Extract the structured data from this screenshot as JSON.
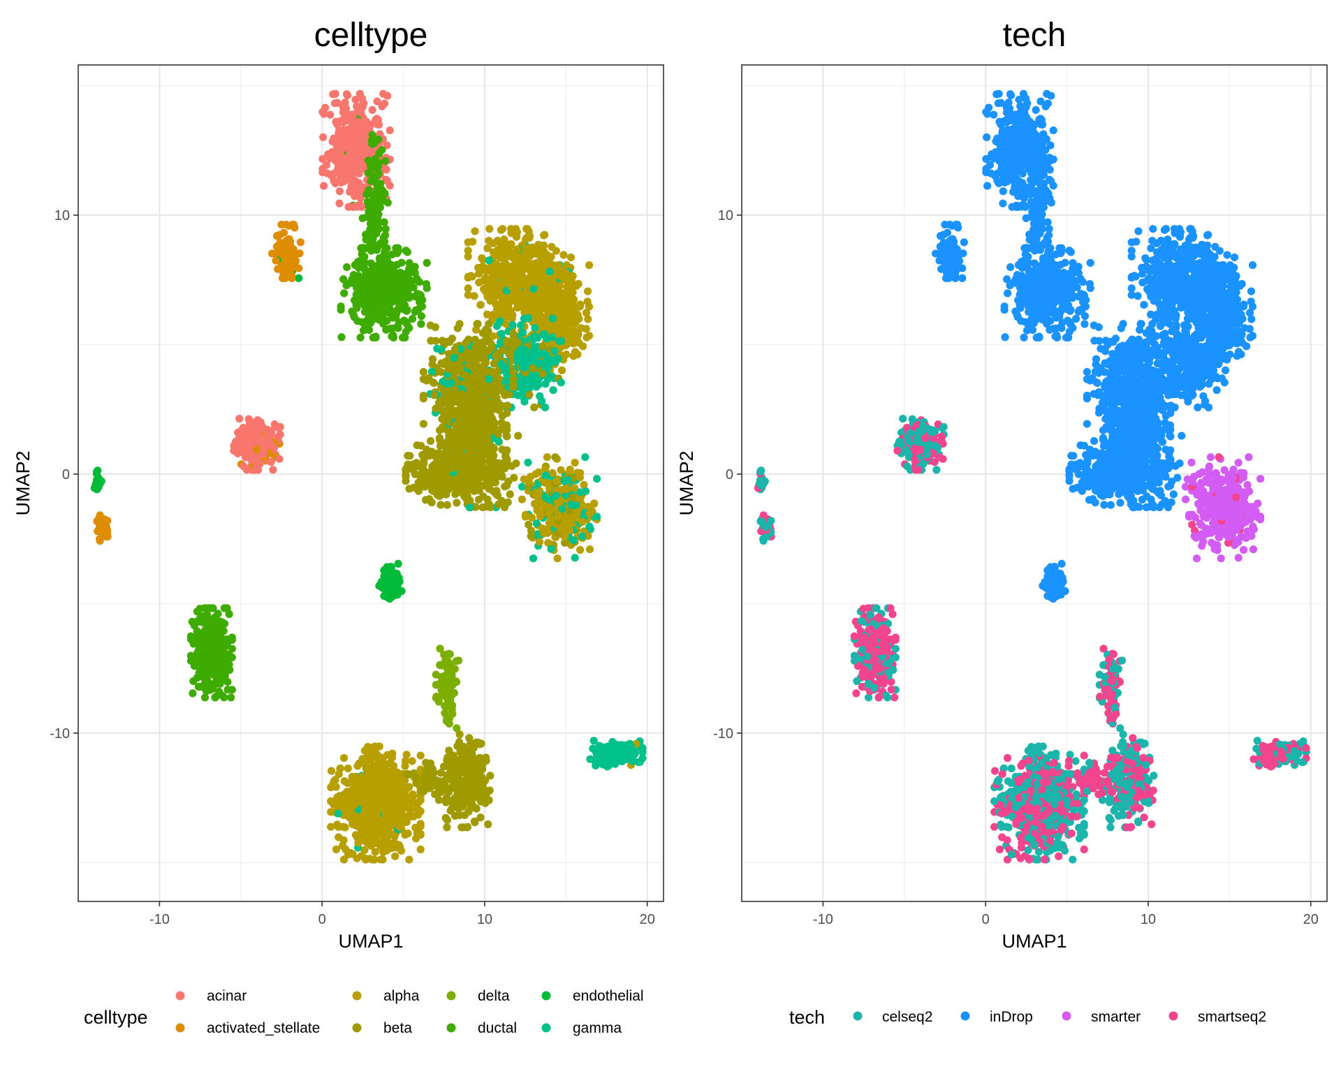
{
  "chart_data": [
    {
      "type": "scatter",
      "title": "celltype",
      "xlabel": "UMAP1",
      "ylabel": "UMAP2",
      "xlim": [
        -15,
        21
      ],
      "ylim": [
        -16.5,
        15.8
      ],
      "xticks": [
        -10,
        0,
        10,
        20
      ],
      "yticks": [
        -10,
        0,
        10
      ],
      "xtick_labels": [
        "-10",
        "0",
        "10",
        "20"
      ],
      "ytick_labels": [
        "-10",
        "0",
        "10"
      ],
      "grid": true,
      "legend_title": "celltype",
      "legend_position": "bottom",
      "legend": [
        {
          "label": "acinar",
          "color": "#F8766D"
        },
        {
          "label": "activated_stellate",
          "color": "#DE8C00"
        },
        {
          "label": "alpha",
          "color": "#B79F00"
        },
        {
          "label": "beta",
          "color": "#9E9A00"
        },
        {
          "label": "delta",
          "color": "#7CAE00"
        },
        {
          "label": "ductal",
          "color": "#3EAB00"
        },
        {
          "label": "endothelial",
          "color": "#00BA38"
        },
        {
          "label": "gamma",
          "color": "#00C08B"
        }
      ],
      "clusters": [
        {
          "cx": 2.1,
          "cy": 12.5,
          "sx": 0.9,
          "sy": 0.95,
          "n": 380,
          "mix": [
            [
              "acinar",
              0.96
            ],
            [
              "ductal",
              0.04
            ]
          ]
        },
        {
          "cx": 3.3,
          "cy": 10.3,
          "sx": 0.35,
          "sy": 1.6,
          "n": 120,
          "mix": [
            [
              "ductal",
              1.0
            ]
          ]
        },
        {
          "cx": 3.8,
          "cy": 7.0,
          "sx": 1.15,
          "sy": 0.75,
          "n": 420,
          "mix": [
            [
              "ductal",
              1.0
            ]
          ]
        },
        {
          "cx": -2.2,
          "cy": 8.6,
          "sx": 0.38,
          "sy": 0.45,
          "n": 110,
          "mix": [
            [
              "activated_stellate",
              0.97
            ],
            [
              "endothelial",
              0.03
            ]
          ]
        },
        {
          "cx": -4.0,
          "cy": 1.2,
          "sx": 0.62,
          "sy": 0.45,
          "n": 240,
          "mix": [
            [
              "acinar",
              0.9
            ],
            [
              "activated_stellate",
              0.1
            ]
          ]
        },
        {
          "cx": -13.8,
          "cy": -0.25,
          "sx": 0.1,
          "sy": 0.2,
          "n": 22,
          "mix": [
            [
              "endothelial",
              1.0
            ]
          ]
        },
        {
          "cx": -13.5,
          "cy": -2.0,
          "sx": 0.15,
          "sy": 0.25,
          "n": 40,
          "mix": [
            [
              "activated_stellate",
              1.0
            ]
          ]
        },
        {
          "cx": -6.8,
          "cy": -6.9,
          "sx": 0.55,
          "sy": 0.75,
          "n": 400,
          "mix": [
            [
              "ductal",
              1.0
            ]
          ]
        },
        {
          "cx": 4.2,
          "cy": -4.2,
          "sx": 0.3,
          "sy": 0.35,
          "n": 90,
          "mix": [
            [
              "endothelial",
              1.0
            ]
          ]
        },
        {
          "cx": 12.2,
          "cy": 7.4,
          "sx": 1.4,
          "sy": 0.9,
          "n": 520,
          "mix": [
            [
              "alpha",
              0.96
            ],
            [
              "gamma",
              0.04
            ]
          ]
        },
        {
          "cx": 14.7,
          "cy": 6.0,
          "sx": 0.75,
          "sy": 0.9,
          "n": 280,
          "mix": [
            [
              "alpha",
              0.97
            ],
            [
              "gamma",
              0.03
            ]
          ]
        },
        {
          "cx": 12.4,
          "cy": 4.3,
          "sx": 1.0,
          "sy": 0.75,
          "n": 280,
          "mix": [
            [
              "gamma",
              0.8
            ],
            [
              "beta",
              0.2
            ]
          ]
        },
        {
          "cx": 9.0,
          "cy": 3.5,
          "sx": 1.2,
          "sy": 1.0,
          "n": 420,
          "mix": [
            [
              "beta",
              0.88
            ],
            [
              "gamma",
              0.12
            ]
          ]
        },
        {
          "cx": 9.3,
          "cy": 1.8,
          "sx": 0.9,
          "sy": 0.75,
          "n": 260,
          "mix": [
            [
              "beta",
              0.95
            ],
            [
              "gamma",
              0.05
            ]
          ]
        },
        {
          "cx": 8.6,
          "cy": 0.1,
          "sx": 1.5,
          "sy": 0.6,
          "n": 400,
          "mix": [
            [
              "beta",
              0.97
            ],
            [
              "gamma",
              0.03
            ]
          ]
        },
        {
          "cx": 14.6,
          "cy": -1.3,
          "sx": 1.0,
          "sy": 0.85,
          "n": 320,
          "mix": [
            [
              "alpha",
              0.6
            ],
            [
              "gamma",
              0.25
            ],
            [
              "beta",
              0.15
            ]
          ]
        },
        {
          "cx": 7.7,
          "cy": -8.2,
          "sx": 0.3,
          "sy": 0.7,
          "n": 90,
          "mix": [
            [
              "delta",
              1.0
            ]
          ]
        },
        {
          "cx": 3.3,
          "cy": -12.7,
          "sx": 1.2,
          "sy": 0.95,
          "n": 620,
          "mix": [
            [
              "alpha",
              0.99
            ],
            [
              "gamma",
              0.01
            ]
          ]
        },
        {
          "cx": 8.8,
          "cy": -11.8,
          "sx": 0.7,
          "sy": 0.8,
          "n": 260,
          "mix": [
            [
              "beta",
              1.0
            ]
          ]
        },
        {
          "cx": 6.6,
          "cy": -11.9,
          "sx": 0.6,
          "sy": 0.35,
          "n": 40,
          "mix": [
            [
              "beta",
              1.0
            ]
          ]
        },
        {
          "cx": 18.1,
          "cy": -10.8,
          "sx": 0.7,
          "sy": 0.22,
          "n": 160,
          "mix": [
            [
              "gamma",
              0.95
            ],
            [
              "alpha",
              0.05
            ]
          ]
        }
      ]
    },
    {
      "type": "scatter",
      "title": "tech",
      "xlabel": "UMAP1",
      "ylabel": "UMAP2",
      "xlim": [
        -15,
        21
      ],
      "ylim": [
        -16.5,
        15.8
      ],
      "xticks": [
        -10,
        0,
        10,
        20
      ],
      "yticks": [
        -10,
        0,
        10
      ],
      "xtick_labels": [
        "-10",
        "0",
        "10",
        "20"
      ],
      "ytick_labels": [
        "-10",
        "0",
        "10"
      ],
      "grid": true,
      "legend_title": "tech",
      "legend_position": "bottom",
      "legend": [
        {
          "label": "celseq2",
          "color": "#1BB5AB"
        },
        {
          "label": "inDrop",
          "color": "#1A92FF"
        },
        {
          "label": "smarter",
          "color": "#D35CF5"
        },
        {
          "label": "smartseq2",
          "color": "#F2458E"
        }
      ],
      "clusters": [
        {
          "cx": 2.1,
          "cy": 12.5,
          "sx": 0.9,
          "sy": 0.95,
          "n": 380,
          "mix": [
            [
              "inDrop",
              1.0
            ]
          ]
        },
        {
          "cx": 3.3,
          "cy": 10.3,
          "sx": 0.35,
          "sy": 1.6,
          "n": 120,
          "mix": [
            [
              "inDrop",
              1.0
            ]
          ]
        },
        {
          "cx": 3.8,
          "cy": 7.0,
          "sx": 1.15,
          "sy": 0.75,
          "n": 420,
          "mix": [
            [
              "inDrop",
              1.0
            ]
          ]
        },
        {
          "cx": -2.2,
          "cy": 8.6,
          "sx": 0.38,
          "sy": 0.45,
          "n": 110,
          "mix": [
            [
              "inDrop",
              1.0
            ]
          ]
        },
        {
          "cx": -4.0,
          "cy": 1.2,
          "sx": 0.62,
          "sy": 0.45,
          "n": 240,
          "mix": [
            [
              "celseq2",
              0.62
            ],
            [
              "smartseq2",
              0.38
            ]
          ]
        },
        {
          "cx": -13.8,
          "cy": -0.25,
          "sx": 0.1,
          "sy": 0.2,
          "n": 22,
          "mix": [
            [
              "celseq2",
              0.85
            ],
            [
              "smartseq2",
              0.15
            ]
          ]
        },
        {
          "cx": -13.5,
          "cy": -2.0,
          "sx": 0.15,
          "sy": 0.25,
          "n": 40,
          "mix": [
            [
              "celseq2",
              0.7
            ],
            [
              "smartseq2",
              0.3
            ]
          ]
        },
        {
          "cx": -6.8,
          "cy": -6.9,
          "sx": 0.55,
          "sy": 0.75,
          "n": 400,
          "mix": [
            [
              "smartseq2",
              0.7
            ],
            [
              "celseq2",
              0.3
            ]
          ]
        },
        {
          "cx": 4.2,
          "cy": -4.2,
          "sx": 0.3,
          "sy": 0.35,
          "n": 90,
          "mix": [
            [
              "inDrop",
              1.0
            ]
          ]
        },
        {
          "cx": 12.2,
          "cy": 7.4,
          "sx": 1.4,
          "sy": 0.9,
          "n": 520,
          "mix": [
            [
              "inDrop",
              1.0
            ]
          ]
        },
        {
          "cx": 14.7,
          "cy": 6.0,
          "sx": 0.75,
          "sy": 0.9,
          "n": 280,
          "mix": [
            [
              "inDrop",
              1.0
            ]
          ]
        },
        {
          "cx": 12.4,
          "cy": 4.3,
          "sx": 1.0,
          "sy": 0.75,
          "n": 280,
          "mix": [
            [
              "inDrop",
              1.0
            ]
          ]
        },
        {
          "cx": 9.0,
          "cy": 3.5,
          "sx": 1.2,
          "sy": 1.0,
          "n": 420,
          "mix": [
            [
              "inDrop",
              1.0
            ]
          ]
        },
        {
          "cx": 9.3,
          "cy": 1.8,
          "sx": 0.9,
          "sy": 0.75,
          "n": 260,
          "mix": [
            [
              "inDrop",
              1.0
            ]
          ]
        },
        {
          "cx": 8.6,
          "cy": 0.1,
          "sx": 1.5,
          "sy": 0.6,
          "n": 400,
          "mix": [
            [
              "inDrop",
              1.0
            ]
          ]
        },
        {
          "cx": 14.6,
          "cy": -1.3,
          "sx": 1.0,
          "sy": 0.85,
          "n": 320,
          "mix": [
            [
              "smarter",
              0.95
            ],
            [
              "smartseq2",
              0.05
            ]
          ]
        },
        {
          "cx": 7.7,
          "cy": -8.2,
          "sx": 0.3,
          "sy": 0.7,
          "n": 90,
          "mix": [
            [
              "smartseq2",
              0.6
            ],
            [
              "celseq2",
              0.4
            ]
          ]
        },
        {
          "cx": 3.3,
          "cy": -12.7,
          "sx": 1.2,
          "sy": 0.95,
          "n": 620,
          "mix": [
            [
              "celseq2",
              0.55
            ],
            [
              "smartseq2",
              0.45
            ]
          ]
        },
        {
          "cx": 8.8,
          "cy": -11.8,
          "sx": 0.7,
          "sy": 0.8,
          "n": 260,
          "mix": [
            [
              "celseq2",
              0.6
            ],
            [
              "smartseq2",
              0.4
            ]
          ]
        },
        {
          "cx": 6.6,
          "cy": -11.9,
          "sx": 0.6,
          "sy": 0.35,
          "n": 40,
          "mix": [
            [
              "smartseq2",
              0.8
            ],
            [
              "celseq2",
              0.2
            ]
          ]
        },
        {
          "cx": 18.1,
          "cy": -10.8,
          "sx": 0.7,
          "sy": 0.22,
          "n": 160,
          "mix": [
            [
              "smartseq2",
              0.5
            ],
            [
              "celseq2",
              0.5
            ]
          ]
        }
      ]
    }
  ]
}
